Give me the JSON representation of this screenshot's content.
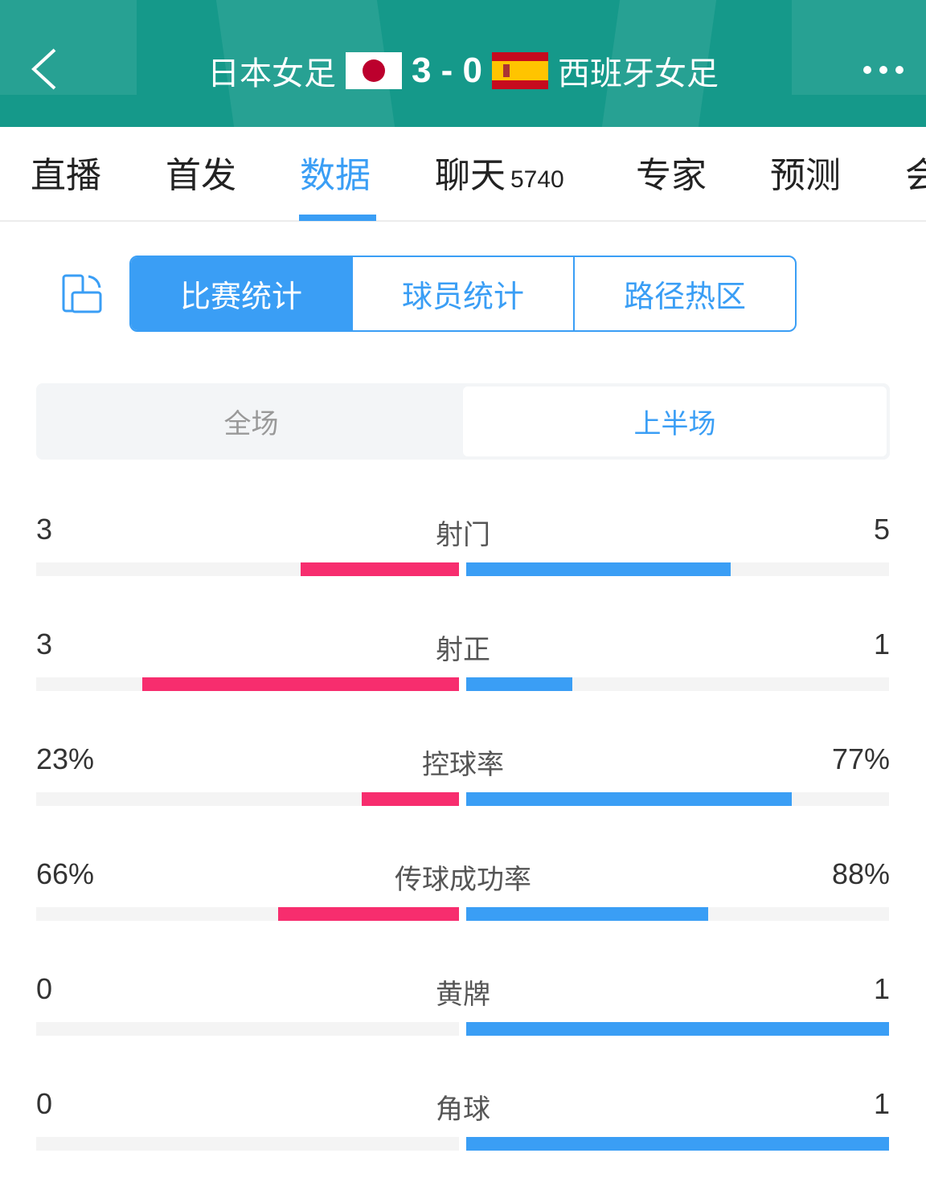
{
  "header": {
    "home": "日本女足",
    "score": "3 - 0",
    "away": "西班牙女足",
    "home_flag": "japan-flag",
    "away_flag": "spain-flag"
  },
  "tabs": [
    {
      "label": "直播"
    },
    {
      "label": "首发"
    },
    {
      "label": "数据",
      "active": true
    },
    {
      "label": "聊天",
      "badge": "5740"
    },
    {
      "label": "专家"
    },
    {
      "label": "预测"
    },
    {
      "label": "会"
    }
  ],
  "segments": [
    "比赛统计",
    "球员统计",
    "路径热区"
  ],
  "periods": [
    "全场",
    "上半场"
  ],
  "colors": {
    "home": "#f72d6e",
    "away": "#3a9ef5",
    "header": "#15998a"
  },
  "stats": [
    {
      "label": "射门",
      "home": "3",
      "away": "5",
      "hv": 3,
      "av": 5
    },
    {
      "label": "射正",
      "home": "3",
      "away": "1",
      "hv": 3,
      "av": 1
    },
    {
      "label": "控球率",
      "home": "23%",
      "away": "77%",
      "hv": 23,
      "av": 77
    },
    {
      "label": "传球成功率",
      "home": "66%",
      "away": "88%",
      "hv": 66,
      "av": 88
    },
    {
      "label": "黄牌",
      "home": "0",
      "away": "1",
      "hv": 0,
      "av": 1
    },
    {
      "label": "角球",
      "home": "0",
      "away": "1",
      "hv": 0,
      "av": 1
    }
  ]
}
